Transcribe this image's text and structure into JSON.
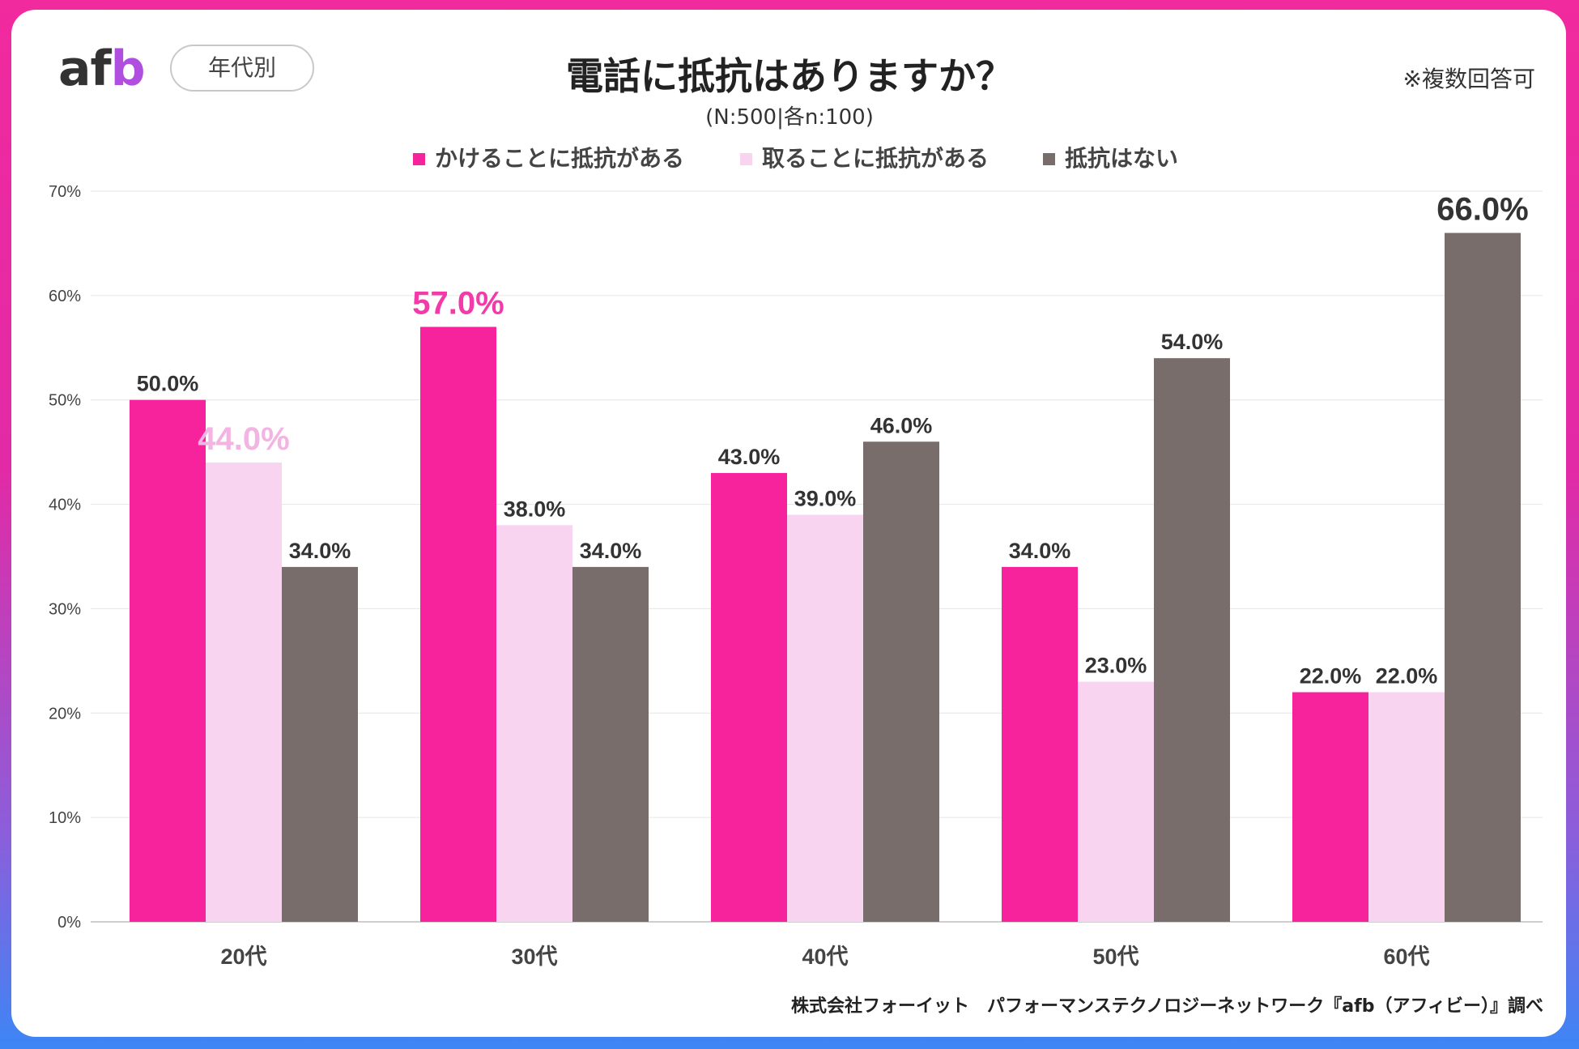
{
  "header": {
    "logo": "afb",
    "tag": "年代別",
    "note": "※複数回答可"
  },
  "chart_data": {
    "type": "bar",
    "title": "電話に抵抗はありますか？",
    "subtitle": "(N:500|各n:100)",
    "categories": [
      "20代",
      "30代",
      "40代",
      "50代",
      "60代"
    ],
    "series": [
      {
        "name": "かけることに抵抗がある",
        "color": "#f7239d",
        "values": [
          50.0,
          57.0,
          43.0,
          34.0,
          22.0
        ]
      },
      {
        "name": "取ることに抵抗がある",
        "color": "#f9d4f1",
        "values": [
          44.0,
          38.0,
          39.0,
          23.0,
          22.0
        ]
      },
      {
        "name": "抵抗はない",
        "color": "#786d6b",
        "values": [
          34.0,
          34.0,
          46.0,
          54.0,
          66.0
        ]
      }
    ],
    "value_labels": [
      [
        "50.0%",
        "44.0%",
        "34.0%"
      ],
      [
        "57.0%",
        "38.0%",
        "34.0%"
      ],
      [
        "43.0%",
        "39.0%",
        "46.0%"
      ],
      [
        "34.0%",
        "23.0%",
        "54.0%"
      ],
      [
        "22.0%",
        "22.0%",
        "66.0%"
      ]
    ],
    "highlights": [
      {
        "category_index": 1,
        "series_index": 0,
        "color": "#f23aa8"
      },
      {
        "category_index": 0,
        "series_index": 1,
        "color": "#f2b4e2"
      },
      {
        "category_index": 4,
        "series_index": 2,
        "color": "#333333"
      }
    ],
    "ylim": [
      0,
      70
    ],
    "yticks": [
      0,
      10,
      20,
      30,
      40,
      50,
      60,
      70
    ],
    "ytick_labels": [
      "0%",
      "10%",
      "20%",
      "30%",
      "40%",
      "50%",
      "60%",
      "70%"
    ],
    "xlabel": "",
    "ylabel": "",
    "grid": true,
    "legend_position": "top-center"
  },
  "footer": {
    "credit": "株式会社フォーイット　パフォーマンステクノロジーネットワーク『afb（アフィビー）』調べ"
  }
}
